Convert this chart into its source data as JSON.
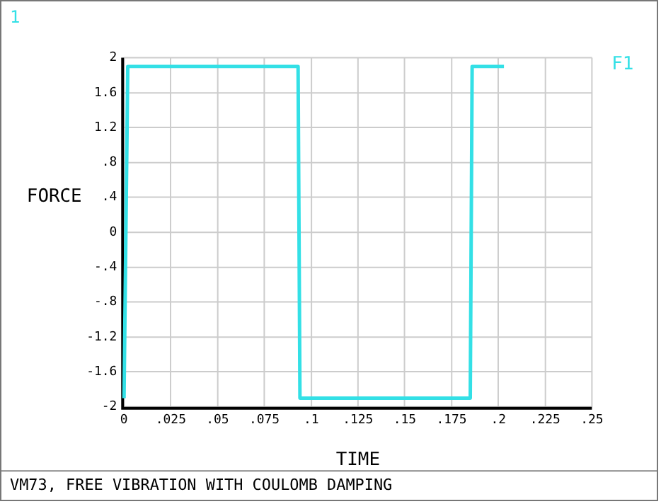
{
  "chart_data": {
    "type": "line",
    "xlabel": "TIME",
    "ylabel": "FORCE",
    "annotations": [
      "1",
      "VM73, FREE VIBRATION WITH COULOMB DAMPING"
    ],
    "xlim": [
      0,
      0.25
    ],
    "xticks": [
      0,
      {
        "value": 0.025,
        "label": ".025"
      },
      {
        "value": 0.05,
        "label": ".05"
      },
      {
        "value": 0.075,
        "label": ".075"
      },
      {
        "value": 0.1,
        "label": ".1"
      },
      {
        "value": 0.125,
        "label": ".125"
      },
      {
        "value": 0.15,
        "label": ".15"
      },
      {
        "value": 0.175,
        "label": ".175"
      },
      {
        "value": 0.2,
        "label": ".2"
      },
      {
        "value": 0.225,
        "label": ".225"
      },
      {
        "value": 0.25,
        "label": ".25"
      }
    ],
    "ylim": [
      -2,
      2
    ],
    "yticks": [
      -2,
      -1.6,
      -1.2,
      {
        "value": -0.8,
        "label": "-.8"
      },
      {
        "value": -0.4,
        "label": "-.4"
      },
      0,
      {
        "value": 0.4,
        "label": ".4"
      },
      {
        "value": 0.8,
        "label": ".8"
      },
      1.2,
      1.6,
      2
    ],
    "grid": true,
    "marker": "none",
    "line_style": "solid",
    "series": [
      {
        "name": "F1",
        "color": "#33e0e6",
        "x": [
          0,
          0.002,
          0.093,
          0.094,
          0.185,
          0.186,
          0.203
        ],
        "values": [
          -1.9,
          1.9,
          1.9,
          -1.9,
          -1.9,
          1.9,
          1.9
        ]
      }
    ]
  }
}
